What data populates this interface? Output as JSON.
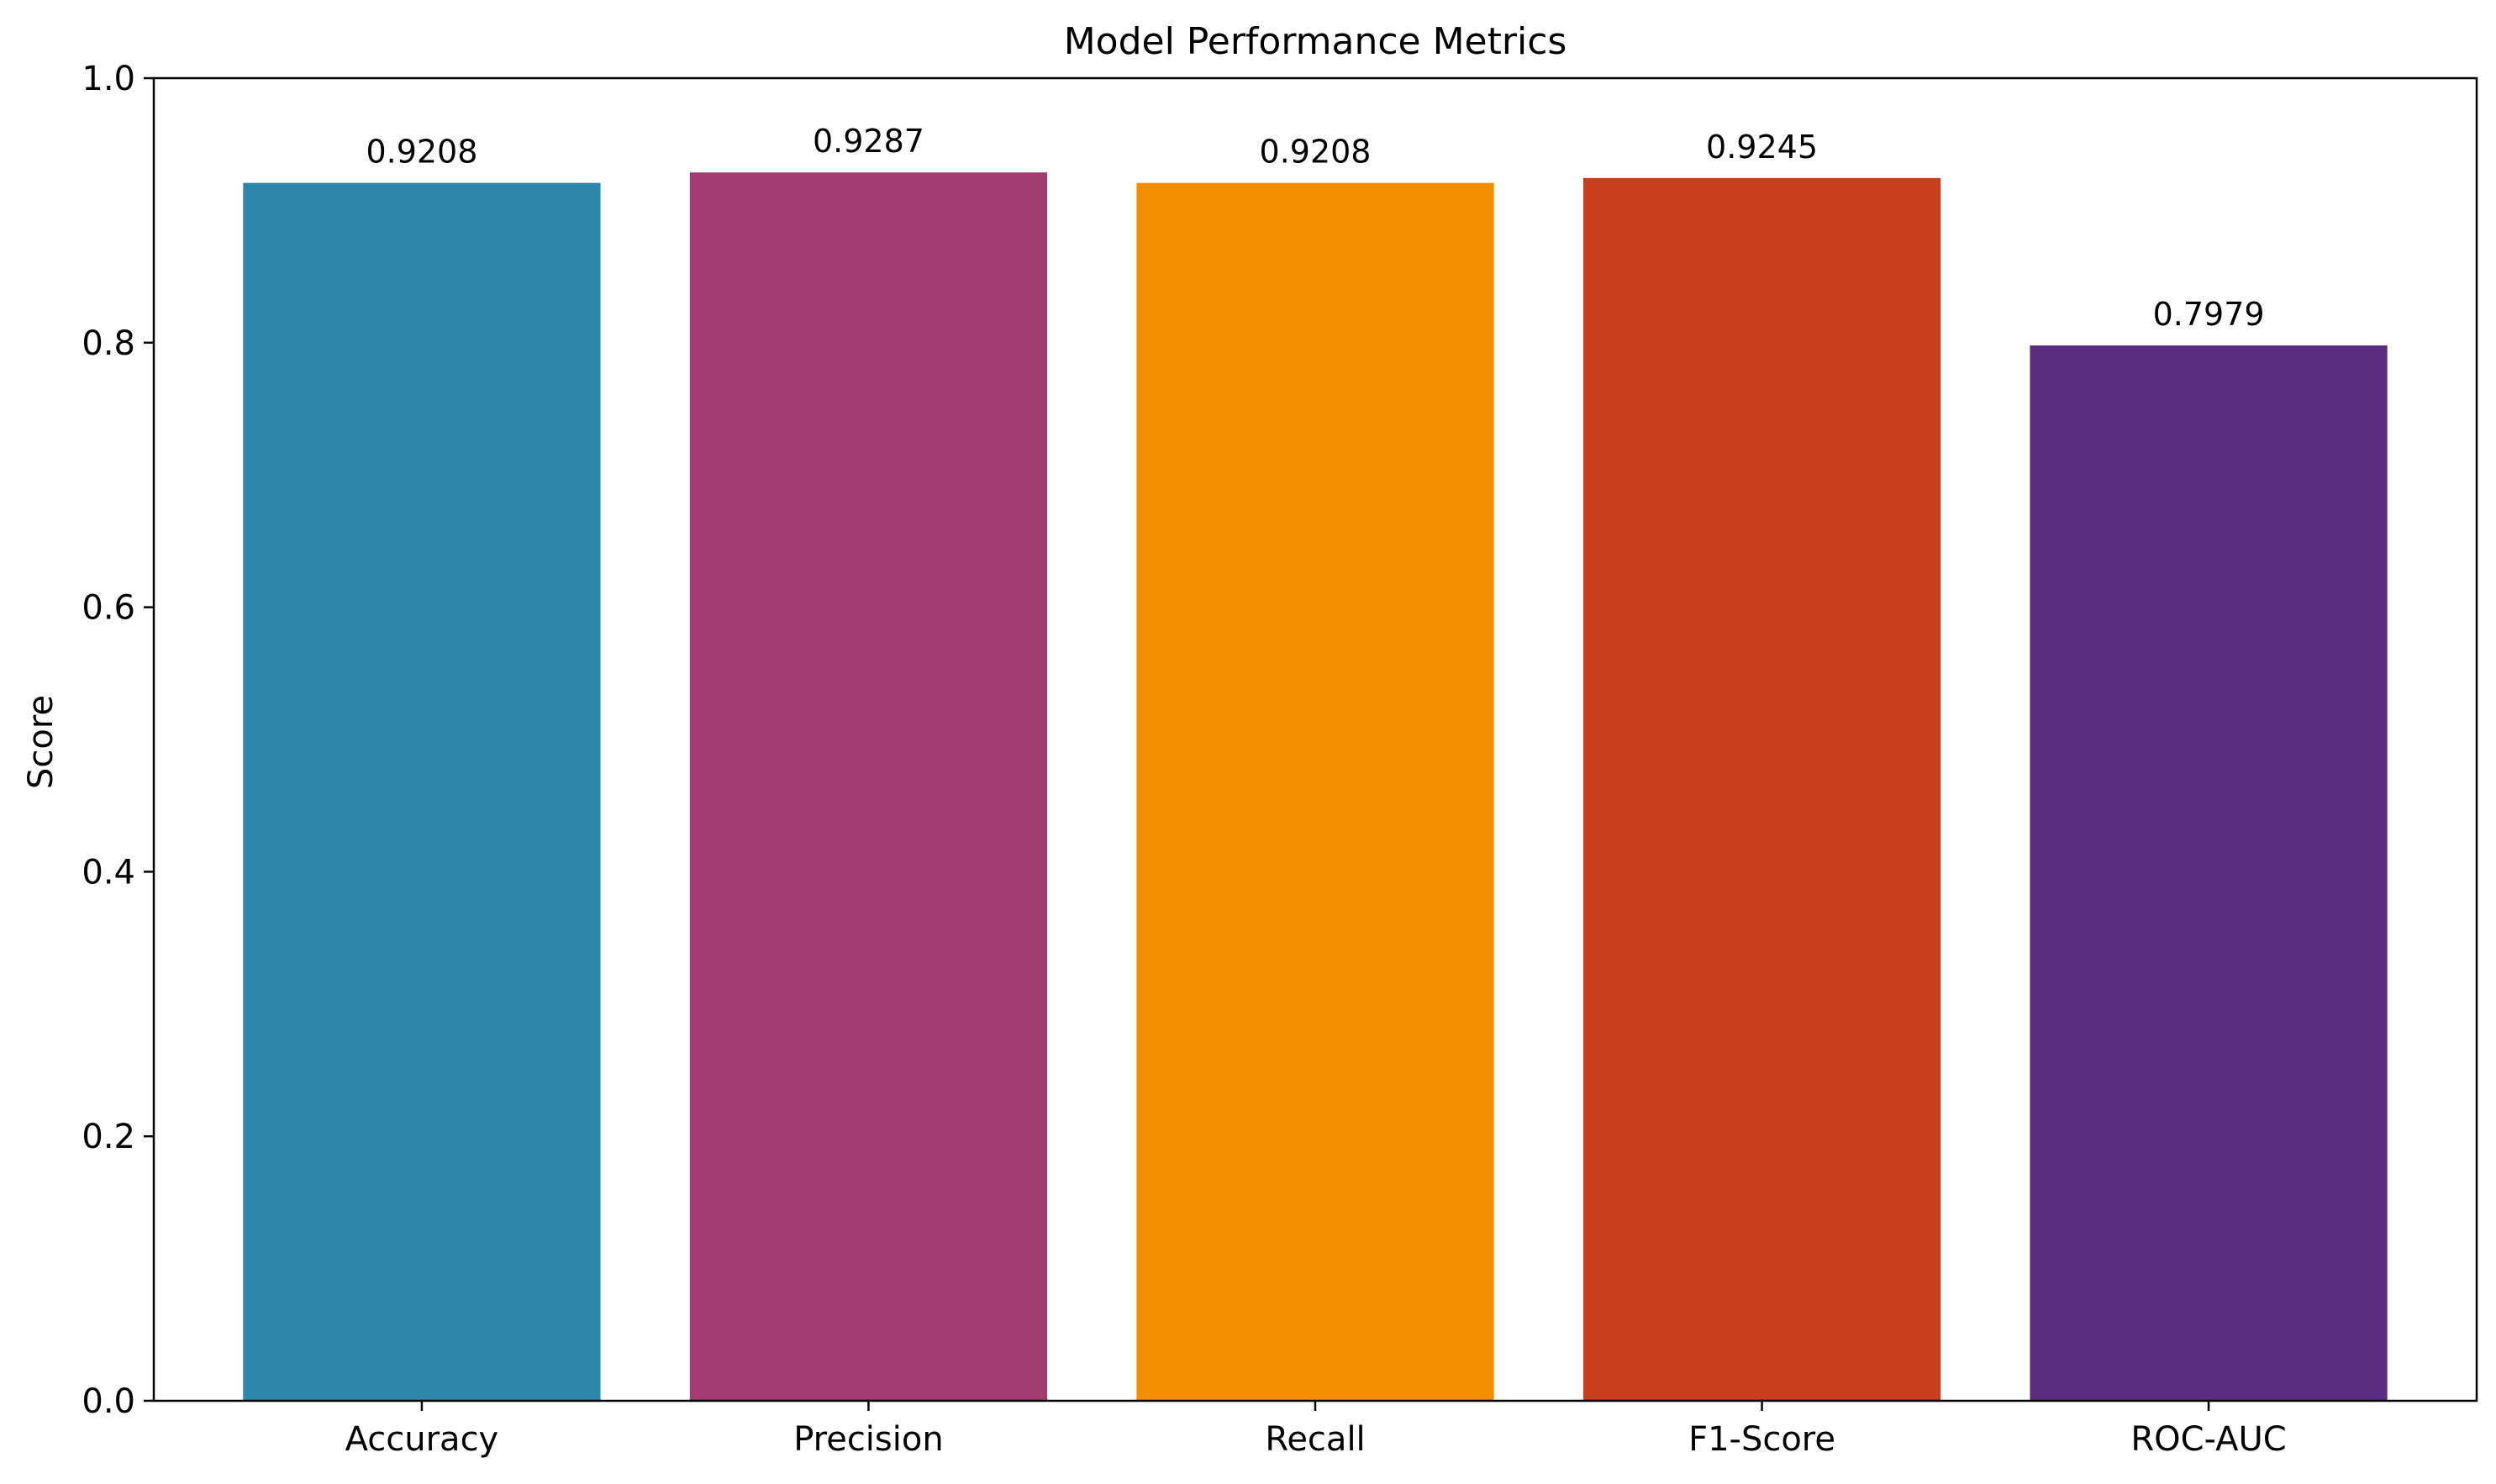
{
  "chart_data": {
    "type": "bar",
    "title": "Model Performance Metrics",
    "xlabel": "",
    "ylabel": "Score",
    "categories": [
      "Accuracy",
      "Precision",
      "Recall",
      "F1-Score",
      "ROC-AUC"
    ],
    "values": [
      0.9208,
      0.9287,
      0.9208,
      0.9245,
      0.7979
    ],
    "value_labels": [
      "0.9208",
      "0.9287",
      "0.9208",
      "0.9245",
      "0.7979"
    ],
    "colors": [
      "#2E86AB",
      "#A23B72",
      "#F18F01",
      "#C73E1D",
      "#5B2D80"
    ],
    "ylim": [
      0,
      1.0
    ],
    "yticks": [
      0.0,
      0.2,
      0.4,
      0.6,
      0.8,
      1.0
    ],
    "ytick_labels": [
      "0.0",
      "0.2",
      "0.4",
      "0.6",
      "0.8",
      "1.0"
    ],
    "grid": false,
    "legend": "none"
  }
}
